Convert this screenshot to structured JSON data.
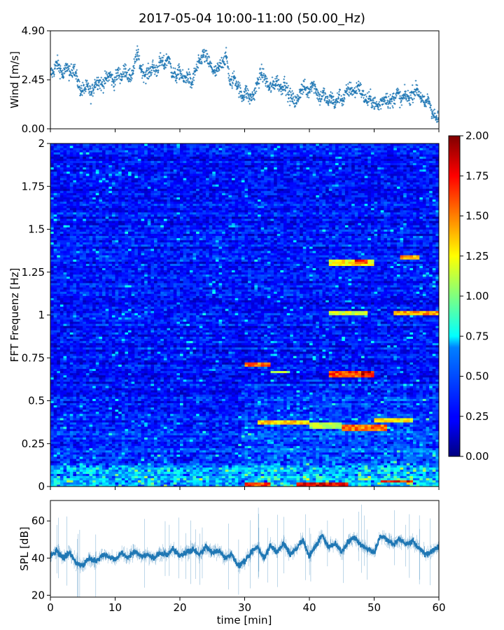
{
  "title": "2017-05-04 10:00-11:00 (50.00_Hz)",
  "chart_data": [
    {
      "type": "scatter",
      "name": "wind",
      "ylabel": "Wind [m/s]",
      "xlim": [
        0,
        60
      ],
      "ylim": [
        0,
        4.9
      ],
      "yticks": [
        "0.00",
        "2.45",
        "4.90"
      ],
      "point_color": "#1f77b4",
      "points": [
        [
          0.4,
          2.8
        ],
        [
          1.0,
          3.3
        ],
        [
          1.5,
          3.0
        ],
        [
          2.0,
          2.6
        ],
        [
          2.5,
          3.2
        ],
        [
          3.0,
          2.7
        ],
        [
          3.6,
          3.1
        ],
        [
          4.2,
          2.4
        ],
        [
          4.7,
          1.9
        ],
        [
          5.3,
          2.0
        ],
        [
          5.8,
          2.1
        ],
        [
          6.3,
          1.7
        ],
        [
          6.9,
          2.3
        ],
        [
          7.4,
          2.4
        ],
        [
          8.0,
          2.2
        ],
        [
          8.6,
          2.5
        ],
        [
          9.2,
          2.7
        ],
        [
          9.8,
          2.3
        ],
        [
          10.4,
          2.8
        ],
        [
          11.0,
          2.6
        ],
        [
          11.6,
          3.0
        ],
        [
          12.2,
          2.5
        ],
        [
          12.8,
          2.9
        ],
        [
          13.4,
          3.8
        ],
        [
          14.0,
          3.0
        ],
        [
          14.6,
          2.7
        ],
        [
          15.2,
          2.8
        ],
        [
          15.8,
          3.1
        ],
        [
          16.4,
          2.9
        ],
        [
          17.0,
          3.4
        ],
        [
          17.6,
          3.2
        ],
        [
          18.2,
          3.6
        ],
        [
          18.8,
          2.8
        ],
        [
          19.4,
          2.6
        ],
        [
          20.0,
          2.9
        ],
        [
          20.6,
          2.4
        ],
        [
          21.2,
          2.7
        ],
        [
          21.8,
          2.2
        ],
        [
          22.4,
          2.9
        ],
        [
          23.0,
          3.3
        ],
        [
          23.6,
          3.7
        ],
        [
          24.2,
          3.5
        ],
        [
          24.8,
          3.1
        ],
        [
          25.4,
          2.8
        ],
        [
          26.0,
          3.0
        ],
        [
          26.6,
          3.4
        ],
        [
          27.2,
          3.6
        ],
        [
          27.8,
          2.2
        ],
        [
          28.4,
          2.6
        ],
        [
          29.0,
          2.1
        ],
        [
          29.6,
          1.6
        ],
        [
          30.2,
          1.9
        ],
        [
          30.8,
          1.5
        ],
        [
          31.4,
          1.7
        ],
        [
          32.0,
          2.3
        ],
        [
          32.6,
          2.8
        ],
        [
          33.2,
          2.5
        ],
        [
          33.8,
          2.0
        ],
        [
          34.4,
          2.2
        ],
        [
          35.0,
          2.4
        ],
        [
          35.6,
          2.0
        ],
        [
          36.2,
          2.3
        ],
        [
          36.8,
          1.7
        ],
        [
          37.4,
          1.5
        ],
        [
          38.0,
          1.3
        ],
        [
          38.6,
          1.9
        ],
        [
          39.2,
          2.1
        ],
        [
          39.8,
          1.8
        ],
        [
          40.4,
          2.3
        ],
        [
          41.0,
          2.0
        ],
        [
          41.6,
          1.5
        ],
        [
          42.2,
          1.8
        ],
        [
          42.8,
          1.3
        ],
        [
          43.4,
          1.6
        ],
        [
          44.0,
          1.2
        ],
        [
          44.6,
          1.7
        ],
        [
          45.2,
          1.4
        ],
        [
          45.8,
          1.9
        ],
        [
          46.4,
          2.0
        ],
        [
          47.0,
          1.8
        ],
        [
          47.6,
          2.2
        ],
        [
          48.2,
          1.7
        ],
        [
          48.8,
          1.4
        ],
        [
          49.4,
          1.5
        ],
        [
          50.0,
          1.3
        ],
        [
          50.6,
          1.1
        ],
        [
          51.2,
          1.4
        ],
        [
          51.8,
          1.6
        ],
        [
          52.4,
          1.3
        ],
        [
          53.0,
          1.5
        ],
        [
          53.6,
          1.8
        ],
        [
          54.2,
          1.4
        ],
        [
          54.8,
          1.7
        ],
        [
          55.4,
          1.5
        ],
        [
          56.0,
          1.8
        ],
        [
          56.6,
          2.0
        ],
        [
          57.2,
          1.6
        ],
        [
          57.8,
          1.2
        ],
        [
          58.4,
          1.5
        ],
        [
          59.0,
          0.8
        ],
        [
          59.6,
          0.5
        ]
      ]
    },
    {
      "type": "heatmap",
      "name": "spectrogram",
      "ylabel": "FFT Frequenz [Hz]",
      "xlim": [
        0,
        60
      ],
      "ylim": [
        0,
        2
      ],
      "yticks": [
        "0",
        "0.25",
        "0.5",
        "0.75",
        "1",
        "1.25",
        "1.5",
        "1.75",
        "2"
      ],
      "colormap": "jet",
      "colorbar": {
        "range": [
          0,
          2
        ],
        "ticks": [
          "0.00",
          "0.25",
          "0.50",
          "0.75",
          "1.00",
          "1.25",
          "1.50",
          "1.75",
          "2.00"
        ]
      },
      "highlights": [
        {
          "t": [
            30,
            34
          ],
          "f": [
            0.7,
            0.72
          ],
          "v": 1.7
        },
        {
          "t": [
            34,
            37
          ],
          "f": [
            0.66,
            0.68
          ],
          "v": 1.2
        },
        {
          "t": [
            43,
            48
          ],
          "f": [
            0.64,
            0.67
          ],
          "v": 1.8
        },
        {
          "t": [
            48,
            50
          ],
          "f": [
            0.64,
            0.67
          ],
          "v": 2.0
        },
        {
          "t": [
            43,
            50
          ],
          "f": [
            1.29,
            1.32
          ],
          "v": 1.4
        },
        {
          "t": [
            47,
            49
          ],
          "f": [
            1.3,
            1.32
          ],
          "v": 1.9
        },
        {
          "t": [
            54,
            57
          ],
          "f": [
            1.33,
            1.35
          ],
          "v": 1.6
        },
        {
          "t": [
            43,
            49
          ],
          "f": [
            1.0,
            1.02
          ],
          "v": 1.3
        },
        {
          "t": [
            53,
            60
          ],
          "f": [
            1.0,
            1.03
          ],
          "v": 1.6
        },
        {
          "t": [
            32,
            40
          ],
          "f": [
            0.36,
            0.39
          ],
          "v": 1.5
        },
        {
          "t": [
            40,
            45
          ],
          "f": [
            0.34,
            0.37
          ],
          "v": 1.2
        },
        {
          "t": [
            45,
            52
          ],
          "f": [
            0.33,
            0.36
          ],
          "v": 1.7
        },
        {
          "t": [
            50,
            56
          ],
          "f": [
            0.37,
            0.4
          ],
          "v": 1.4
        },
        {
          "t": [
            51,
            56
          ],
          "f": [
            0.02,
            0.04
          ],
          "v": 1.9
        },
        {
          "t": [
            38,
            46
          ],
          "f": [
            0.0,
            0.02
          ],
          "v": 2.0
        },
        {
          "t": [
            30,
            34
          ],
          "f": [
            0.0,
            0.02
          ],
          "v": 1.8
        }
      ]
    },
    {
      "type": "line",
      "name": "spl",
      "ylabel": "SPL [dB]",
      "xlabel": "time [min]",
      "xlim": [
        0,
        60
      ],
      "ylim": [
        19,
        71
      ],
      "yticks": [
        "20",
        "40",
        "60"
      ],
      "xticks": [
        "0",
        "10",
        "20",
        "30",
        "40",
        "50",
        "60"
      ],
      "line_color": "#1f77b4",
      "points": [
        [
          0,
          41
        ],
        [
          1,
          44
        ],
        [
          2,
          40
        ],
        [
          3,
          43
        ],
        [
          4,
          37
        ],
        [
          5,
          36
        ],
        [
          6,
          40
        ],
        [
          7,
          38
        ],
        [
          8,
          42
        ],
        [
          9,
          41
        ],
        [
          10,
          39
        ],
        [
          11,
          43
        ],
        [
          12,
          40
        ],
        [
          13,
          44
        ],
        [
          14,
          41
        ],
        [
          15,
          42
        ],
        [
          16,
          40
        ],
        [
          17,
          43
        ],
        [
          18,
          42
        ],
        [
          19,
          45
        ],
        [
          20,
          41
        ],
        [
          21,
          43
        ],
        [
          22,
          45
        ],
        [
          23,
          42
        ],
        [
          24,
          46
        ],
        [
          25,
          43
        ],
        [
          26,
          44
        ],
        [
          27,
          40
        ],
        [
          28,
          42
        ],
        [
          29,
          36
        ],
        [
          30,
          38
        ],
        [
          31,
          43
        ],
        [
          32,
          46
        ],
        [
          33,
          40
        ],
        [
          34,
          47
        ],
        [
          35,
          43
        ],
        [
          36,
          48
        ],
        [
          37,
          42
        ],
        [
          38,
          45
        ],
        [
          39,
          50
        ],
        [
          40,
          41
        ],
        [
          41,
          47
        ],
        [
          42,
          52
        ],
        [
          43,
          46
        ],
        [
          44,
          48
        ],
        [
          45,
          43
        ],
        [
          46,
          49
        ],
        [
          47,
          51
        ],
        [
          48,
          47
        ],
        [
          49,
          45
        ],
        [
          50,
          43
        ],
        [
          51,
          52
        ],
        [
          52,
          50
        ],
        [
          53,
          48
        ],
        [
          54,
          50
        ],
        [
          55,
          47
        ],
        [
          56,
          49
        ],
        [
          57,
          45
        ],
        [
          58,
          42
        ],
        [
          59,
          44
        ],
        [
          60,
          46
        ]
      ]
    }
  ]
}
